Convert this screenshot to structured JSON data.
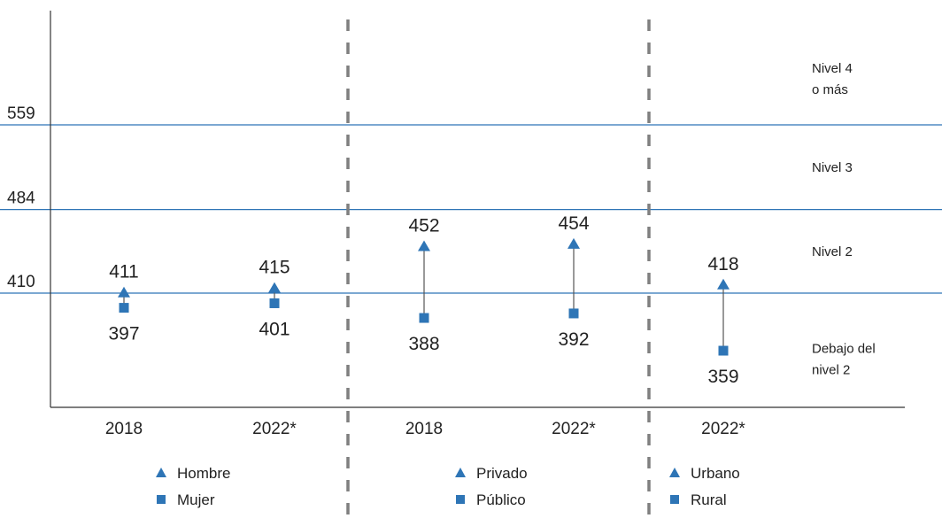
{
  "chart_data": {
    "type": "scatter",
    "y_ticks": [
      "559",
      "484",
      "410"
    ],
    "thresholds": [
      410,
      484,
      559
    ],
    "level_labels": [
      {
        "lines": [
          "Nivel 4",
          "o más"
        ]
      },
      {
        "lines": [
          "Nivel 3"
        ]
      },
      {
        "lines": [
          "Nivel 2"
        ]
      },
      {
        "lines": [
          "Debajo del",
          "nivel 2"
        ]
      }
    ],
    "groups": [
      {
        "legend": [
          {
            "marker": "triangle",
            "label": "Hombre"
          },
          {
            "marker": "square",
            "label": "Mujer"
          }
        ],
        "points": [
          {
            "x": "2018",
            "high": 411,
            "low": 397,
            "high_label": "411",
            "low_label": "397"
          },
          {
            "x": "2022*",
            "high": 415,
            "low": 401,
            "high_label": "415",
            "low_label": "401"
          }
        ]
      },
      {
        "legend": [
          {
            "marker": "triangle",
            "label": "Privado"
          },
          {
            "marker": "square",
            "label": "Público"
          }
        ],
        "points": [
          {
            "x": "2018",
            "high": 452,
            "low": 388,
            "high_label": "452",
            "low_label": "388"
          },
          {
            "x": "2022*",
            "high": 454,
            "low": 392,
            "high_label": "454",
            "low_label": "392"
          }
        ]
      },
      {
        "legend": [
          {
            "marker": "triangle",
            "label": "Urbano"
          },
          {
            "marker": "square",
            "label": "Rural"
          }
        ],
        "points": [
          {
            "x": "2022*",
            "high": 418,
            "low": 359,
            "high_label": "418",
            "low_label": "359"
          }
        ]
      }
    ],
    "colors": {
      "marker": "#2e75b6",
      "threshold_line": "#2e75b6",
      "separator": "#7f7f7f",
      "connector": "#555555",
      "axis": "#333333"
    }
  }
}
